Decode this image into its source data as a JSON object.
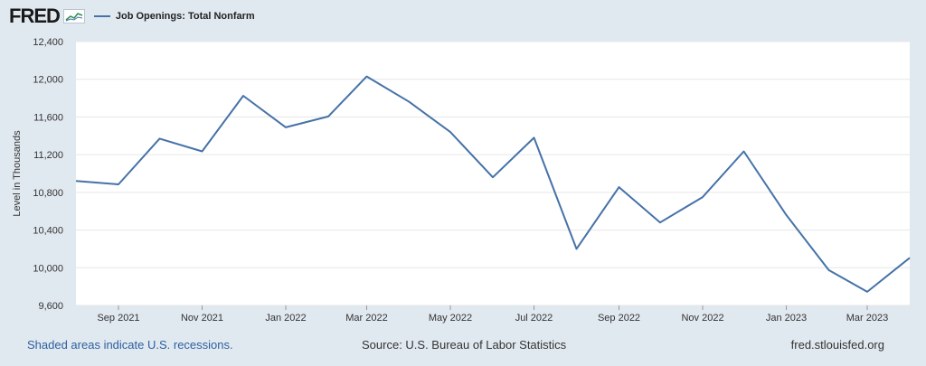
{
  "brand": {
    "logo_text": "FRED",
    "logo_icon": "line-graph-icon"
  },
  "colors": {
    "background": "#e1e9f0",
    "plot_bg": "#ffffff",
    "series": "#4572a7",
    "grid": "#e6e6e6"
  },
  "chart_data": {
    "type": "line",
    "ylabel": "Level in Thousands",
    "ylim": [
      9600,
      12400
    ],
    "yticks": [
      "9,600",
      "10,000",
      "10,400",
      "10,800",
      "11,200",
      "11,600",
      "12,000",
      "12,400"
    ],
    "ytick_values": [
      9600,
      10000,
      10400,
      10800,
      11200,
      11600,
      12000,
      12400
    ],
    "xticks": [
      "Sep 2021",
      "Nov 2021",
      "Jan 2022",
      "Mar 2022",
      "May 2022",
      "Jul 2022",
      "Sep 2022",
      "Nov 2022",
      "Jan 2023",
      "Mar 2023"
    ],
    "grid": true,
    "legend": "top-left",
    "series": [
      {
        "name": "Job Openings: Total Nonfarm",
        "x": [
          "2021-08",
          "2021-09",
          "2021-10",
          "2021-11",
          "2021-12",
          "2022-01",
          "2022-02",
          "2022-03",
          "2022-04",
          "2022-05",
          "2022-06",
          "2022-07",
          "2022-08",
          "2022-09",
          "2022-10",
          "2022-11",
          "2022-12",
          "2023-01",
          "2023-02",
          "2023-03",
          "2023-04"
        ],
        "values": [
          10920,
          10885,
          11370,
          11235,
          11825,
          11490,
          11605,
          12030,
          11760,
          11440,
          10960,
          11380,
          10200,
          10855,
          10480,
          10750,
          11235,
          10560,
          9975,
          9745,
          10105
        ]
      }
    ]
  },
  "footer": {
    "recession_note": "Shaded areas indicate U.S. recessions.",
    "source": "Source: U.S. Bureau of Labor Statistics",
    "site": "fred.stlouisfed.org"
  }
}
